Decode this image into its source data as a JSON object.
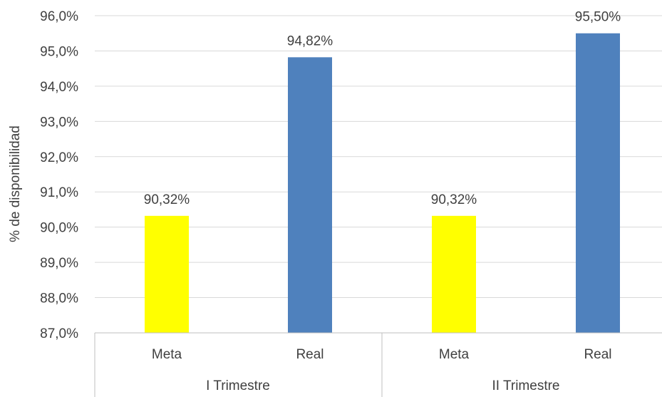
{
  "chart_data": {
    "type": "bar",
    "title": "",
    "ylabel": "% de disponibilidad",
    "xlabel": "",
    "ylim": [
      87.0,
      96.0
    ],
    "yticks": [
      "87,0%",
      "88,0%",
      "89,0%",
      "90,0%",
      "91,0%",
      "92,0%",
      "93,0%",
      "94,0%",
      "95,0%",
      "96,0%"
    ],
    "grid": true,
    "groups": [
      {
        "label": "I Trimestre",
        "bars": [
          {
            "category": "Meta",
            "value": 90.32,
            "label": "90,32%",
            "color": "#ffff00"
          },
          {
            "category": "Real",
            "value": 94.82,
            "label": "94,82%",
            "color": "#4f81bd"
          }
        ]
      },
      {
        "label": "II Trimestre",
        "bars": [
          {
            "category": "Meta",
            "value": 90.32,
            "label": "90,32%",
            "color": "#ffff00"
          },
          {
            "category": "Real",
            "value": 95.5,
            "label": "95,50%",
            "color": "#4f81bd"
          }
        ]
      }
    ],
    "colors": {
      "grid": "#d9d9d9",
      "axis": "#bfbfbf",
      "text": "#404040"
    }
  }
}
